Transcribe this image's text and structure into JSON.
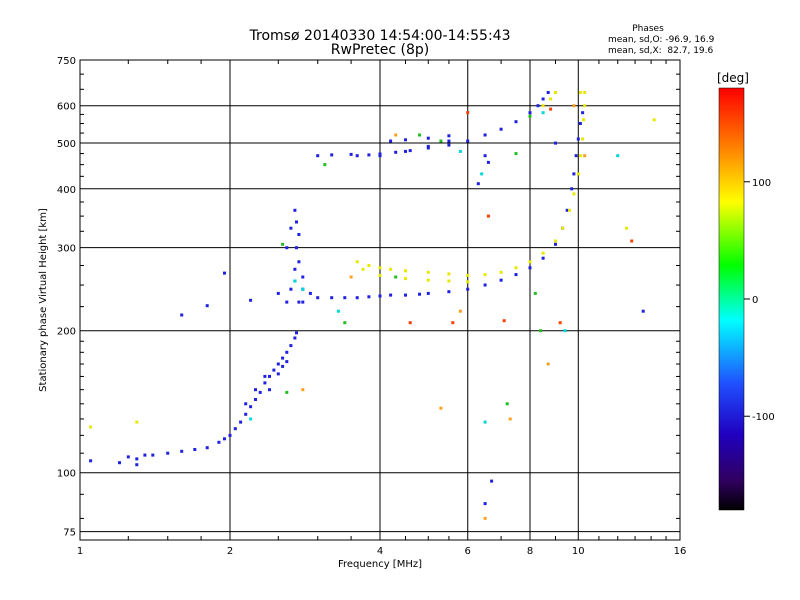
{
  "chart_data": {
    "type": "scatter",
    "title": "Tromsø 20140330 14:54:00-14:55:43",
    "subtitle": "RwPretec (8p)",
    "xlabel": "Frequency [MHz]",
    "ylabel": "Stationary phase Virtual Height [km]",
    "x_scale": "log",
    "y_scale": "log",
    "xlim": [
      1,
      16
    ],
    "ylim": [
      72,
      750
    ],
    "x_ticks": [
      1,
      2,
      4,
      6,
      8,
      10,
      16
    ],
    "x_tick_labels": [
      "1",
      "2",
      "4",
      "6",
      "8",
      "10",
      "16"
    ],
    "y_ticks": [
      75,
      100,
      200,
      300,
      400,
      500,
      600,
      750
    ],
    "y_tick_labels": [
      "75",
      "100",
      "200",
      "300",
      "400",
      "500",
      "600",
      "750"
    ],
    "grid": true,
    "phase_stats": {
      "heading": "Phases",
      "o_line": "mean, sd,O: -96.9, 16.9",
      "x_line": "mean, sd,X:  82.7, 19.6"
    },
    "colorbar": {
      "label": "[deg]",
      "ticks": [
        100,
        0,
        -100
      ],
      "tick_labels": [
        "100",
        "0",
        "-100"
      ],
      "range": [
        -180,
        180
      ]
    },
    "series": [
      {
        "phase": -96.9,
        "color": "#2020e0",
        "points": [
          [
            1.05,
            106
          ],
          [
            1.25,
            108
          ],
          [
            1.3,
            107
          ],
          [
            1.35,
            109
          ],
          [
            1.4,
            109
          ],
          [
            1.5,
            110
          ],
          [
            1.6,
            111
          ],
          [
            1.7,
            112
          ],
          [
            1.8,
            113
          ],
          [
            1.9,
            116
          ],
          [
            1.95,
            118
          ],
          [
            2.0,
            120
          ],
          [
            2.05,
            124
          ],
          [
            2.1,
            128
          ],
          [
            2.15,
            133
          ],
          [
            2.2,
            138
          ],
          [
            2.25,
            143
          ],
          [
            2.3,
            148
          ],
          [
            2.35,
            155
          ],
          [
            2.4,
            160
          ],
          [
            2.45,
            165
          ],
          [
            2.5,
            170
          ],
          [
            2.55,
            175
          ],
          [
            2.6,
            180
          ],
          [
            2.65,
            186
          ],
          [
            2.7,
            193
          ],
          [
            2.72,
            198
          ],
          [
            2.15,
            140
          ],
          [
            2.25,
            150
          ],
          [
            2.35,
            160
          ],
          [
            2.4,
            150
          ],
          [
            2.5,
            162
          ],
          [
            2.55,
            168
          ],
          [
            2.6,
            172
          ],
          [
            2.6,
            300
          ],
          [
            2.65,
            330
          ],
          [
            2.7,
            360
          ],
          [
            2.72,
            340
          ],
          [
            2.75,
            320
          ],
          [
            2.75,
            280
          ],
          [
            2.8,
            260
          ],
          [
            2.8,
            245
          ],
          [
            2.7,
            255
          ],
          [
            2.65,
            245
          ],
          [
            2.7,
            270
          ],
          [
            2.72,
            300
          ],
          [
            2.6,
            230
          ],
          [
            2.5,
            240
          ],
          [
            2.75,
            230
          ],
          [
            2.8,
            230
          ],
          [
            2.9,
            240
          ],
          [
            3.0,
            235
          ],
          [
            3.2,
            235
          ],
          [
            3.4,
            235
          ],
          [
            3.6,
            235
          ],
          [
            3.8,
            236
          ],
          [
            4.0,
            237
          ],
          [
            4.2,
            238
          ],
          [
            4.5,
            238
          ],
          [
            4.8,
            239
          ],
          [
            5.0,
            240
          ],
          [
            5.5,
            242
          ],
          [
            6.0,
            245
          ],
          [
            6.5,
            250
          ],
          [
            7.0,
            256
          ],
          [
            7.5,
            263
          ],
          [
            8.0,
            272
          ],
          [
            8.5,
            285
          ],
          [
            9.0,
            305
          ],
          [
            9.3,
            330
          ],
          [
            9.5,
            360
          ],
          [
            9.7,
            400
          ],
          [
            9.8,
            430
          ],
          [
            9.9,
            470
          ],
          [
            10.0,
            510
          ],
          [
            10.1,
            550
          ],
          [
            10.2,
            580
          ],
          [
            3.0,
            470
          ],
          [
            3.2,
            472
          ],
          [
            3.5,
            473
          ],
          [
            3.8,
            472
          ],
          [
            4.0,
            474
          ],
          [
            4.3,
            478
          ],
          [
            4.6,
            482
          ],
          [
            5.0,
            488
          ],
          [
            5.5,
            495
          ],
          [
            6.0,
            505
          ],
          [
            6.5,
            520
          ],
          [
            7.0,
            535
          ],
          [
            7.5,
            555
          ],
          [
            8.0,
            580
          ],
          [
            8.3,
            600
          ],
          [
            8.5,
            620
          ],
          [
            8.7,
            640
          ],
          [
            3.6,
            470
          ],
          [
            4.0,
            470
          ],
          [
            4.5,
            480
          ],
          [
            5.0,
            492
          ],
          [
            5.5,
            505
          ],
          [
            4.2,
            505
          ],
          [
            4.5,
            508
          ],
          [
            5.0,
            512
          ],
          [
            5.5,
            518
          ],
          [
            1.3,
            104
          ],
          [
            1.2,
            105
          ],
          [
            1.6,
            216
          ],
          [
            1.8,
            226
          ],
          [
            1.95,
            265
          ],
          [
            2.2,
            232
          ],
          [
            6.5,
            470
          ],
          [
            6.6,
            455
          ],
          [
            6.3,
            410
          ],
          [
            6.7,
            96
          ],
          [
            6.5,
            86
          ],
          [
            13.5,
            220
          ],
          [
            9.0,
            500
          ]
        ]
      },
      {
        "phase": 82.7,
        "color": "#e8e800",
        "points": [
          [
            3.6,
            280
          ],
          [
            3.8,
            275
          ],
          [
            4.0,
            272
          ],
          [
            4.2,
            270
          ],
          [
            4.5,
            268
          ],
          [
            5.0,
            266
          ],
          [
            5.5,
            264
          ],
          [
            6.0,
            262
          ],
          [
            6.5,
            263
          ],
          [
            7.0,
            266
          ],
          [
            7.5,
            272
          ],
          [
            8.0,
            280
          ],
          [
            8.5,
            292
          ],
          [
            9.0,
            310
          ],
          [
            9.3,
            330
          ],
          [
            9.6,
            360
          ],
          [
            9.8,
            390
          ],
          [
            10.0,
            430
          ],
          [
            10.1,
            470
          ],
          [
            10.2,
            510
          ],
          [
            10.25,
            560
          ],
          [
            10.3,
            600
          ],
          [
            10.3,
            640
          ],
          [
            3.7,
            270
          ],
          [
            4.0,
            262
          ],
          [
            4.5,
            258
          ],
          [
            5.0,
            256
          ],
          [
            5.5,
            255
          ],
          [
            6.0,
            254
          ],
          [
            8.5,
            600
          ],
          [
            8.8,
            620
          ],
          [
            9.0,
            640
          ],
          [
            1.05,
            125
          ],
          [
            1.3,
            128
          ],
          [
            10.1,
            640
          ],
          [
            12.5,
            330
          ],
          [
            14.2,
            560
          ]
        ]
      },
      {
        "phase": 0,
        "color": "#20c020",
        "points": [
          [
            2.55,
            305
          ],
          [
            3.1,
            450
          ],
          [
            3.4,
            208
          ],
          [
            2.6,
            148
          ],
          [
            5.3,
            505
          ],
          [
            7.5,
            475
          ],
          [
            8.2,
            240
          ],
          [
            8.4,
            200
          ],
          [
            7.2,
            140
          ],
          [
            4.3,
            260
          ],
          [
            8.0,
            570
          ],
          [
            4.8,
            520
          ]
        ]
      },
      {
        "phase": -10,
        "color": "#00d8d8",
        "points": [
          [
            2.8,
            245
          ],
          [
            2.7,
            255
          ],
          [
            6.4,
            430
          ],
          [
            12.0,
            470
          ],
          [
            9.4,
            200
          ],
          [
            6.5,
            128
          ],
          [
            5.8,
            480
          ],
          [
            8.5,
            580
          ],
          [
            3.3,
            220
          ],
          [
            2.2,
            130
          ]
        ]
      },
      {
        "phase": 150,
        "color": "#ff4000",
        "points": [
          [
            4.6,
            208
          ],
          [
            5.6,
            208
          ],
          [
            6.6,
            350
          ],
          [
            12.8,
            310
          ],
          [
            8.8,
            590
          ],
          [
            9.2,
            208
          ],
          [
            6.0,
            580
          ],
          [
            7.1,
            210
          ]
        ]
      },
      {
        "phase": 120,
        "color": "#ffa020",
        "points": [
          [
            4.3,
            520
          ],
          [
            5.8,
            220
          ],
          [
            5.3,
            137
          ],
          [
            6.5,
            80
          ],
          [
            9.8,
            600
          ],
          [
            10.3,
            470
          ],
          [
            2.8,
            150
          ],
          [
            7.3,
            130
          ],
          [
            8.7,
            170
          ],
          [
            3.5,
            260
          ]
        ]
      }
    ]
  }
}
